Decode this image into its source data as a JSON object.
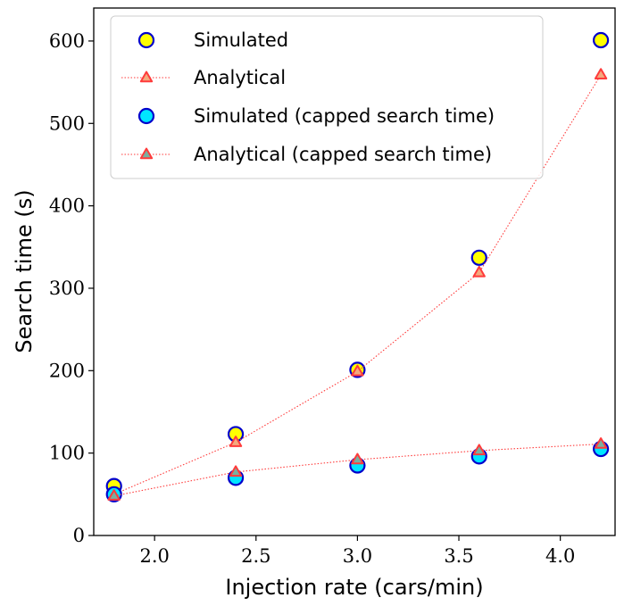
{
  "chart_data": {
    "type": "scatter",
    "xlabel": "Injection rate (cars/min)",
    "ylabel": "Search time (s)",
    "xlim": [
      1.7,
      4.27
    ],
    "ylim": [
      0,
      640
    ],
    "xticks": [
      "2.0",
      "2.5",
      "3.0",
      "3.5",
      "4.0"
    ],
    "yticks": [
      "0",
      "100",
      "200",
      "300",
      "400",
      "500",
      "600"
    ],
    "xtick_values": [
      2.0,
      2.5,
      3.0,
      3.5,
      4.0
    ],
    "ytick_values": [
      0,
      100,
      200,
      300,
      400,
      500,
      600
    ],
    "grid": false,
    "legend_position": "top-left",
    "x": [
      1.8,
      2.4,
      3.0,
      3.6,
      4.2
    ],
    "series": [
      {
        "name": "Simulated",
        "marker": "circle",
        "line": false,
        "color": "#FFFF00",
        "edge_color": "#0000CC",
        "values": [
          60,
          123,
          201,
          337,
          601
        ]
      },
      {
        "name": "Analytical",
        "marker": "triangle",
        "line": true,
        "color": "#F4A97E",
        "edge_color": "#FF3B3B",
        "values": [
          50,
          113,
          199,
          319,
          559
        ]
      },
      {
        "name": "Simulated (capped search time)",
        "marker": "circle",
        "line": false,
        "color": "#00E5FF",
        "edge_color": "#0000CC",
        "values": [
          50,
          70,
          85,
          96,
          105
        ]
      },
      {
        "name": "Analytical (capped search time)",
        "marker": "triangle",
        "line": true,
        "color": "#7AAFA0",
        "edge_color": "#FF3B3B",
        "values": [
          48,
          77,
          92,
          103,
          111
        ]
      }
    ]
  }
}
